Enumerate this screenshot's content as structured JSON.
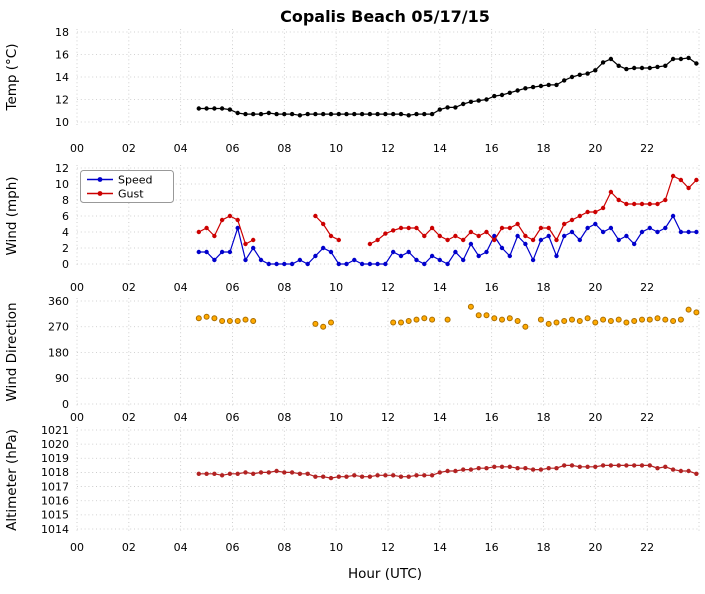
{
  "chart_data": {
    "type": "line",
    "title": "Copalis Beach 05/17/15",
    "xlabel": "Hour (UTC)",
    "grid": true,
    "legend_position": "upper-left",
    "xlim": [
      0,
      24
    ],
    "xticks": [
      0,
      2,
      4,
      6,
      8,
      10,
      12,
      14,
      16,
      18,
      20,
      22
    ],
    "xtick_labels": [
      "00",
      "02",
      "04",
      "06",
      "08",
      "10",
      "12",
      "14",
      "16",
      "18",
      "20",
      "22"
    ],
    "x": [
      4.7,
      5.0,
      5.3,
      5.6,
      5.9,
      6.2,
      6.5,
      6.8,
      7.1,
      7.4,
      7.7,
      8.0,
      8.3,
      8.6,
      8.9,
      9.2,
      9.5,
      9.8,
      10.1,
      10.4,
      10.7,
      11.0,
      11.3,
      11.6,
      11.9,
      12.2,
      12.5,
      12.8,
      13.1,
      13.4,
      13.7,
      14.0,
      14.3,
      14.6,
      14.9,
      15.2,
      15.5,
      15.8,
      16.1,
      16.4,
      16.7,
      17.0,
      17.3,
      17.6,
      17.9,
      18.2,
      18.5,
      18.8,
      19.1,
      19.4,
      19.7,
      20.0,
      20.3,
      20.6,
      20.9,
      21.2,
      21.5,
      21.8,
      22.1,
      22.4,
      22.7,
      23.0,
      23.3,
      23.6,
      23.9
    ],
    "panels": [
      {
        "name": "temperature",
        "ylabel": "Temp (°C)",
        "ylim": [
          10,
          18
        ],
        "yticks": [
          10,
          12,
          14,
          16,
          18
        ],
        "series": [
          {
            "name": "Temp",
            "color": "#000000",
            "line": true,
            "values": [
              11.2,
              11.2,
              11.2,
              11.2,
              11.1,
              10.8,
              10.7,
              10.7,
              10.7,
              10.8,
              10.7,
              10.7,
              10.7,
              10.6,
              10.7,
              10.7,
              10.7,
              10.7,
              10.7,
              10.7,
              10.7,
              10.7,
              10.7,
              10.7,
              10.7,
              10.7,
              10.7,
              10.6,
              10.7,
              10.7,
              10.7,
              11.1,
              11.3,
              11.3,
              11.6,
              11.8,
              11.9,
              12.0,
              12.3,
              12.4,
              12.6,
              12.8,
              13.0,
              13.1,
              13.2,
              13.3,
              13.3,
              13.7,
              14.0,
              14.2,
              14.3,
              14.6,
              15.3,
              15.6,
              15.0,
              14.7,
              14.8,
              14.8,
              14.8,
              14.9,
              15.0,
              15.6,
              15.6,
              15.7,
              15.2
            ]
          }
        ]
      },
      {
        "name": "wind",
        "ylabel": "Wind (mph)",
        "ylim": [
          0,
          12
        ],
        "yticks": [
          0,
          2,
          4,
          6,
          8,
          10,
          12
        ],
        "legend": true,
        "series": [
          {
            "name": "Speed",
            "color": "#0000cc",
            "line": true,
            "values": [
              1.5,
              1.5,
              0.5,
              1.5,
              1.5,
              4.5,
              0.5,
              2.0,
              0.5,
              0.0,
              0.0,
              0.0,
              0.0,
              0.5,
              0.0,
              1.0,
              2.0,
              1.5,
              0.0,
              0.0,
              0.5,
              0.0,
              0.0,
              0.0,
              0.0,
              1.5,
              1.0,
              1.5,
              0.5,
              0.0,
              1.0,
              0.5,
              0.0,
              1.5,
              0.5,
              2.5,
              1.0,
              1.5,
              3.5,
              2.0,
              1.0,
              3.5,
              2.5,
              0.5,
              3.0,
              3.5,
              1.0,
              3.5,
              4.0,
              3.0,
              4.5,
              5.0,
              4.0,
              4.5,
              3.0,
              3.5,
              2.5,
              4.0,
              4.5,
              4.0,
              4.5,
              6.0,
              4.0,
              4.0,
              4.0
            ]
          },
          {
            "name": "Gust",
            "color": "#cc0000",
            "line": true,
            "values": [
              4.0,
              4.5,
              3.5,
              5.5,
              6.0,
              5.5,
              2.5,
              3.0,
              null,
              null,
              null,
              null,
              null,
              null,
              null,
              6.0,
              5.0,
              3.5,
              3.0,
              null,
              null,
              null,
              2.5,
              3.0,
              3.8,
              4.2,
              4.5,
              4.5,
              4.5,
              3.5,
              4.5,
              3.5,
              3.0,
              3.5,
              3.0,
              4.0,
              3.5,
              4.0,
              3.0,
              4.5,
              4.5,
              5.0,
              3.5,
              3.0,
              4.5,
              4.5,
              3.0,
              5.0,
              5.5,
              6.0,
              6.5,
              6.5,
              7.0,
              9.0,
              8.0,
              7.5,
              7.5,
              7.5,
              7.5,
              7.5,
              8.0,
              11.0,
              10.5,
              9.5,
              10.5
            ]
          }
        ]
      },
      {
        "name": "wind-direction",
        "ylabel": "Wind Direction",
        "ylim": [
          0,
          360
        ],
        "yticks": [
          0,
          90,
          180,
          270,
          360
        ],
        "series": [
          {
            "name": "Direction",
            "color": "#ffaa00",
            "edge": "#aa6d00",
            "line": false,
            "values": [
              300,
              305,
              300,
              290,
              290,
              290,
              295,
              290,
              null,
              null,
              null,
              null,
              null,
              null,
              null,
              280,
              270,
              285,
              null,
              null,
              null,
              null,
              null,
              null,
              null,
              285,
              285,
              290,
              295,
              300,
              295,
              null,
              295,
              null,
              null,
              340,
              310,
              310,
              300,
              295,
              300,
              290,
              270,
              null,
              295,
              280,
              285,
              290,
              295,
              290,
              300,
              285,
              295,
              290,
              295,
              285,
              290,
              295,
              295,
              300,
              295,
              290,
              295,
              330,
              320
            ]
          }
        ]
      },
      {
        "name": "altimeter",
        "ylabel": "Altimeter (hPa)",
        "ylim": [
          1014,
          1021
        ],
        "yticks": [
          1014,
          1015,
          1016,
          1017,
          1018,
          1019,
          1020,
          1021
        ],
        "series": [
          {
            "name": "Altimeter",
            "color": "#b22222",
            "line": true,
            "values": [
              1017.9,
              1017.9,
              1017.9,
              1017.8,
              1017.9,
              1017.9,
              1018.0,
              1017.9,
              1018.0,
              1018.0,
              1018.1,
              1018.0,
              1018.0,
              1017.9,
              1017.9,
              1017.7,
              1017.7,
              1017.6,
              1017.7,
              1017.7,
              1017.8,
              1017.7,
              1017.7,
              1017.8,
              1017.8,
              1017.8,
              1017.7,
              1017.7,
              1017.8,
              1017.8,
              1017.8,
              1018.0,
              1018.1,
              1018.1,
              1018.2,
              1018.2,
              1018.3,
              1018.3,
              1018.4,
              1018.4,
              1018.4,
              1018.3,
              1018.3,
              1018.2,
              1018.2,
              1018.3,
              1018.3,
              1018.5,
              1018.5,
              1018.4,
              1018.4,
              1018.4,
              1018.5,
              1018.5,
              1018.5,
              1018.5,
              1018.5,
              1018.5,
              1018.5,
              1018.3,
              1018.4,
              1018.2,
              1018.1,
              1018.1,
              1017.9
            ]
          }
        ]
      }
    ]
  }
}
